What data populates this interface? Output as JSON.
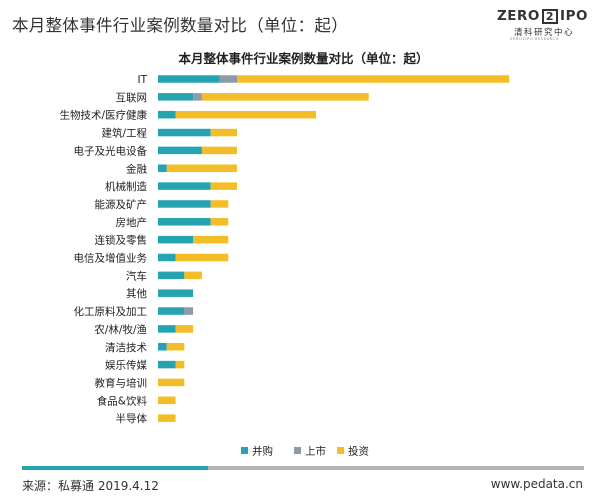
{
  "page_title": "本月整体事件行业案例数量对比（单位：起）",
  "logo": {
    "left": "ZERO",
    "box": "2",
    "right": "IPO",
    "sub": "清科研究中心",
    "tiny": "ZERO2IPO RESEARCH"
  },
  "footer": {
    "source": "来源：私募通 2019.4.12",
    "url": "www.pedata.cn"
  },
  "colors": {
    "merger": "#25a3b1",
    "listing": "#8e9aa8",
    "investment": "#f3bd27"
  },
  "chart_data": {
    "type": "bar",
    "orientation": "horizontal",
    "stacked": true,
    "title": "本月整体事件行业案例数量对比（单位：起）",
    "categories": [
      "IT",
      "互联网",
      "生物技术/医疗健康",
      "建筑/工程",
      "电子及光电设备",
      "金融",
      "机械制造",
      "能源及矿产",
      "房地产",
      "连锁及零售",
      "电信及增值业务",
      "汽车",
      "其他",
      "化工原料及加工",
      "农/林/牧/渔",
      "清洁技术",
      "娱乐传媒",
      "教育与培训",
      "食品&饮料",
      "半导体"
    ],
    "series": [
      {
        "name": "并购",
        "values": [
          14,
          8,
          4,
          12,
          10,
          2,
          12,
          12,
          12,
          8,
          4,
          6,
          8,
          6,
          4,
          2,
          4,
          0,
          0,
          0
        ]
      },
      {
        "name": "上市",
        "values": [
          4,
          2,
          0,
          0,
          0,
          0,
          0,
          0,
          0,
          0,
          0,
          0,
          0,
          2,
          0,
          0,
          0,
          0,
          0,
          0
        ]
      },
      {
        "name": "投资",
        "values": [
          62,
          38,
          32,
          6,
          8,
          16,
          6,
          4,
          4,
          8,
          12,
          4,
          0,
          0,
          4,
          4,
          2,
          6,
          4,
          4
        ]
      }
    ],
    "legend": [
      "并购",
      "上市",
      "投资"
    ],
    "legend_position": "bottom",
    "xlabel": "",
    "ylabel": "",
    "xlim": [
      0,
      80
    ],
    "grid": false
  }
}
